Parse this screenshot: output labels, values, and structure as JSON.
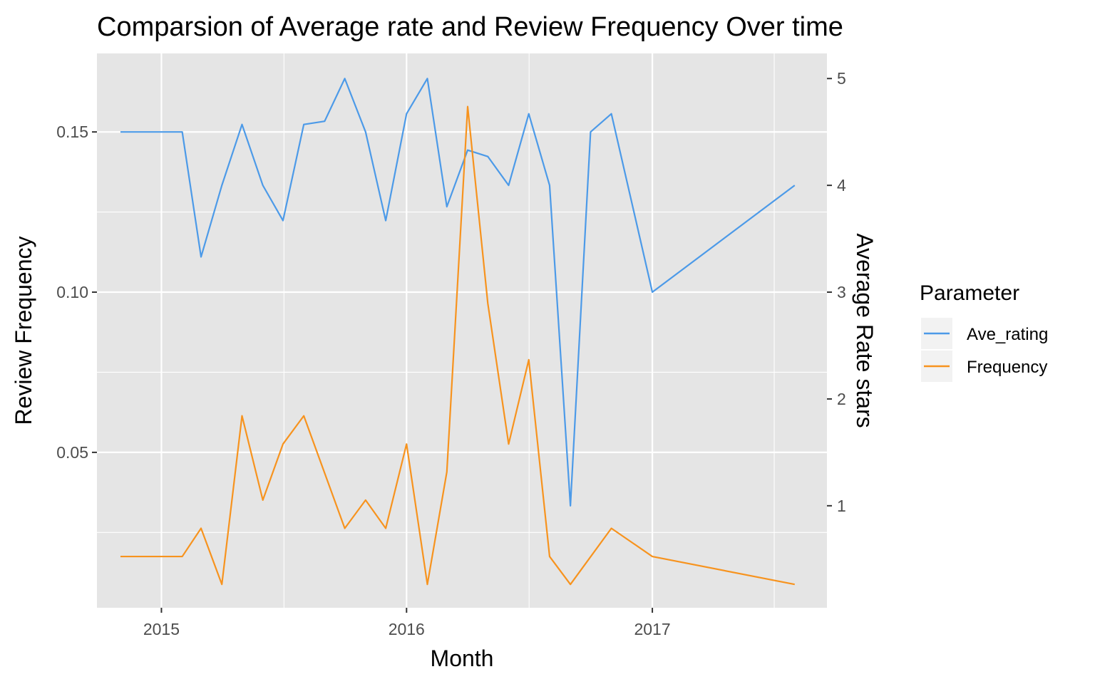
{
  "chart_data": {
    "type": "line",
    "title": "Comparsion of Average rate and Review Frequency Over time",
    "xlabel": "Month",
    "ylabel": "Review Frequency",
    "y2label": "Average Rate stars",
    "legend": {
      "title": "Parameter",
      "position": "right"
    },
    "grid": true,
    "xlim": [
      "2014-09-27",
      "2017-09-18"
    ],
    "ylim": [
      0.0015,
      0.1745
    ],
    "y2lim": [
      0.045,
      5.235
    ],
    "xticks": [
      {
        "value": "2015-01-01",
        "label": "2015"
      },
      {
        "value": "2016-01-01",
        "label": "2016"
      },
      {
        "value": "2017-01-01",
        "label": "2017"
      }
    ],
    "yticks": [
      {
        "value": 0.05,
        "label": "0.05"
      },
      {
        "value": 0.1,
        "label": "0.10"
      },
      {
        "value": 0.15,
        "label": "0.15"
      }
    ],
    "y2ticks": [
      {
        "value": 1,
        "label": "1"
      },
      {
        "value": 2,
        "label": "2"
      },
      {
        "value": 3,
        "label": "3"
      },
      {
        "value": 4,
        "label": "4"
      },
      {
        "value": 5,
        "label": "5"
      }
    ],
    "series": [
      {
        "name": "Ave_rating",
        "color": "#4C9AE8",
        "axis": "right",
        "x": [
          "2014-11-01",
          "2015-02-01",
          "2015-03-01",
          "2015-04-01",
          "2015-05-01",
          "2015-06-01",
          "2015-07-01",
          "2015-08-01",
          "2015-09-01",
          "2015-10-01",
          "2015-11-01",
          "2015-12-01",
          "2016-01-01",
          "2016-02-01",
          "2016-03-01",
          "2016-04-01",
          "2016-05-01",
          "2016-06-01",
          "2016-07-01",
          "2016-08-01",
          "2016-09-01",
          "2016-10-01",
          "2016-11-01",
          "2017-01-01",
          "2017-08-01"
        ],
        "values": [
          4.5,
          4.5,
          3.33,
          4.0,
          4.57,
          4.0,
          3.67,
          4.57,
          4.6,
          5.0,
          4.5,
          3.67,
          4.67,
          5.0,
          3.8,
          4.33,
          4.27,
          4.0,
          4.67,
          4.0,
          1.0,
          4.5,
          4.67,
          3.0,
          4.0
        ]
      },
      {
        "name": "Frequency",
        "color": "#F7931E",
        "axis": "left",
        "x": [
          "2014-11-01",
          "2015-02-01",
          "2015-03-01",
          "2015-04-01",
          "2015-05-01",
          "2015-06-01",
          "2015-07-01",
          "2015-08-01",
          "2015-10-01",
          "2015-11-01",
          "2015-12-01",
          "2016-01-01",
          "2016-02-01",
          "2016-03-01",
          "2016-04-01",
          "2016-05-01",
          "2016-06-01",
          "2016-07-01",
          "2016-08-01",
          "2016-09-01",
          "2016-11-01",
          "2017-01-01",
          "2017-08-01"
        ],
        "values": [
          0.0175,
          0.0175,
          0.0263,
          0.0088,
          0.0614,
          0.0351,
          0.0526,
          0.0614,
          0.0263,
          0.0351,
          0.0263,
          0.0526,
          0.0088,
          0.0439,
          0.1579,
          0.0965,
          0.0526,
          0.0789,
          0.0175,
          0.0088,
          0.0263,
          0.0175,
          0.0088
        ]
      }
    ]
  }
}
